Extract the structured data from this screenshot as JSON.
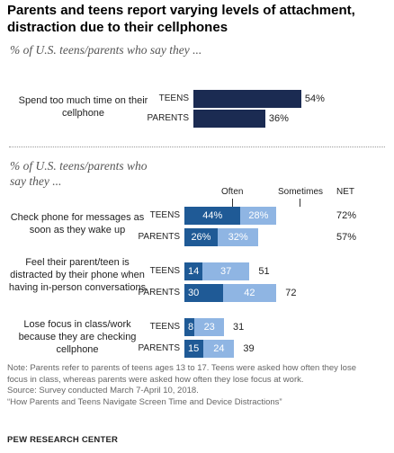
{
  "title": "Parents and teens report varying levels of attachment, distraction due to their cellphones",
  "subtitle1": "% of U.S. teens/parents who say they ...",
  "subtitle2": "% of U.S. teens/parents who say they ...",
  "header": {
    "often": "Often",
    "sometimes": "Sometimes",
    "net": "NET"
  },
  "colors": {
    "often": "#1f5a96",
    "sometimes": "#8fb5e3",
    "single": "#1b2b52"
  },
  "notes": {
    "line1": "Note: Parents refer to parents of teens ages 13 to 17. Teens were asked how often they lose",
    "line2": "focus in class, whereas parents were asked how often they lose focus at work.",
    "line3": "Source: Survey conducted March 7-April 10, 2018.",
    "line4": "“How Parents and Teens Navigate Screen Time and Device Distractions”"
  },
  "source_brand": "PEW RESEARCH CENTER",
  "chart_data": [
    {
      "type": "bar",
      "orientation": "horizontal",
      "title": "% of U.S. teens/parents who say they ...",
      "categories": [
        "TEENS",
        "PARENTS"
      ],
      "group_label": "Spend too much time on their cellphone",
      "values": [
        54,
        36
      ],
      "labels": [
        "54%",
        "36%"
      ]
    },
    {
      "type": "bar",
      "orientation": "horizontal",
      "stacked": true,
      "title": "% of U.S. teens/parents who say they ...",
      "series": [
        {
          "name": "Often"
        },
        {
          "name": "Sometimes"
        }
      ],
      "groups": [
        {
          "label": "Check phone for messages as soon as they wake up",
          "rows": [
            {
              "name": "TEENS",
              "often": 44,
              "sometimes": 28,
              "net": 72,
              "often_label": "44%",
              "sometimes_label": "28%",
              "net_label": "72%"
            },
            {
              "name": "PARENTS",
              "often": 26,
              "sometimes": 32,
              "net": 57,
              "often_label": "26%",
              "sometimes_label": "32%",
              "net_label": "57%"
            }
          ]
        },
        {
          "label": "Feel their parent/teen is distracted by their phone when having in-person conversations",
          "rows": [
            {
              "name": "TEENS",
              "often": 14,
              "sometimes": 37,
              "net": 51,
              "often_label": "14",
              "sometimes_label": "37",
              "net_label": "51"
            },
            {
              "name": "PARENTS",
              "often": 30,
              "sometimes": 42,
              "net": 72,
              "often_label": "30",
              "sometimes_label": "42",
              "net_label": "72"
            }
          ]
        },
        {
          "label": "Lose focus in class/work because they are checking cellphone",
          "rows": [
            {
              "name": "TEENS",
              "often": 8,
              "sometimes": 23,
              "net": 31,
              "often_label": "8",
              "sometimes_label": "23",
              "net_label": "31"
            },
            {
              "name": "PARENTS",
              "often": 15,
              "sometimes": 24,
              "net": 39,
              "often_label": "15",
              "sometimes_label": "24",
              "net_label": "39"
            }
          ]
        }
      ]
    }
  ]
}
